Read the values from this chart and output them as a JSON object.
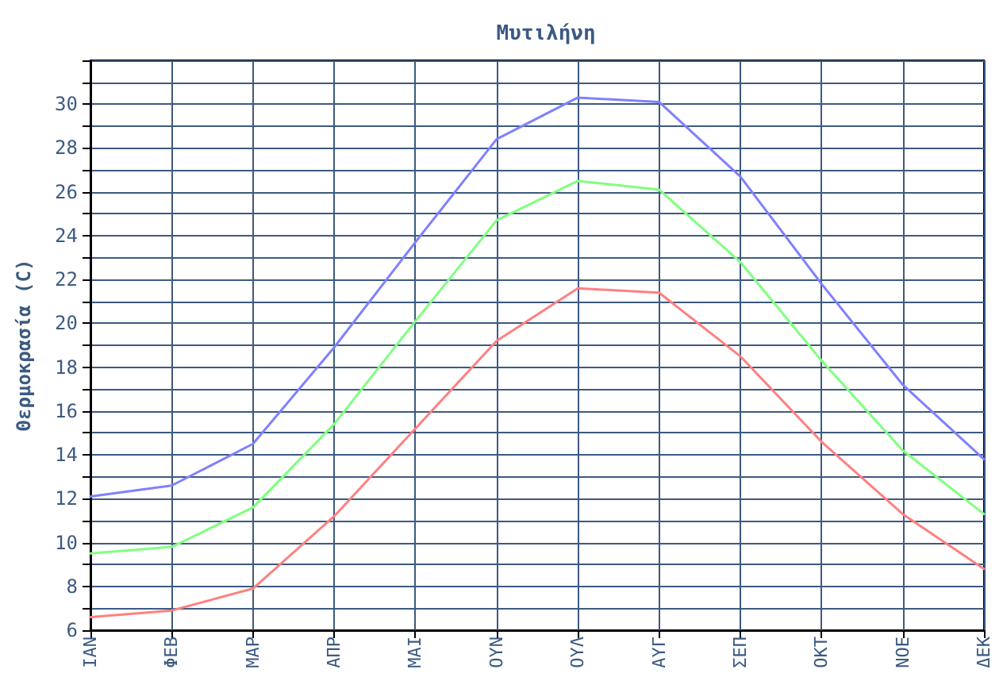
{
  "chart_data": {
    "type": "line",
    "title": "Μυτιλήνη",
    "ylabel": "Θερμοκρασία (C)",
    "categories": [
      "ΙΑΝ",
      "ΦΕΒ",
      "ΜΑΡ",
      "ΑΠΡ",
      "ΜΑΙ",
      "ΟΥΝ",
      "ΟΥΛ",
      "ΑΥΓ",
      "ΣΕΠ",
      "ΟΚΤ",
      "ΝΟΕ",
      "ΔΕΚ"
    ],
    "series": [
      {
        "color": "#8080ff",
        "values": [
          12.1,
          12.6,
          14.5,
          18.9,
          23.7,
          28.4,
          30.3,
          30.1,
          26.7,
          21.8,
          17.2,
          13.8
        ]
      },
      {
        "color": "#80ff80",
        "values": [
          9.5,
          9.8,
          11.6,
          15.4,
          20.1,
          24.7,
          26.5,
          26.1,
          22.8,
          18.3,
          14.2,
          11.3
        ]
      },
      {
        "color": "#ff8080",
        "values": [
          6.6,
          6.9,
          7.9,
          11.2,
          15.2,
          19.2,
          21.6,
          21.4,
          18.5,
          14.6,
          11.3,
          8.8
        ]
      }
    ],
    "ylim": [
      6,
      32
    ],
    "yticks": [
      6,
      {
        "value": 7,
        "label": null
      },
      8,
      {
        "value": 9,
        "label": null
      },
      10,
      {
        "value": 11,
        "label": null
      },
      12,
      {
        "value": 13,
        "label": null
      },
      14,
      {
        "value": 15,
        "label": null
      },
      16,
      {
        "value": 17,
        "label": null
      },
      18,
      {
        "value": 19,
        "label": null
      },
      20,
      {
        "value": 21,
        "label": null
      },
      22,
      {
        "value": 23,
        "label": null
      },
      24,
      {
        "value": 25,
        "label": null
      },
      26,
      {
        "value": 27,
        "label": null
      },
      28,
      {
        "value": 29,
        "label": null
      },
      30,
      {
        "value": 31,
        "label": null
      },
      {
        "value": 32,
        "label": null
      }
    ],
    "grid": true,
    "marker": "none",
    "line_style": "solid"
  }
}
